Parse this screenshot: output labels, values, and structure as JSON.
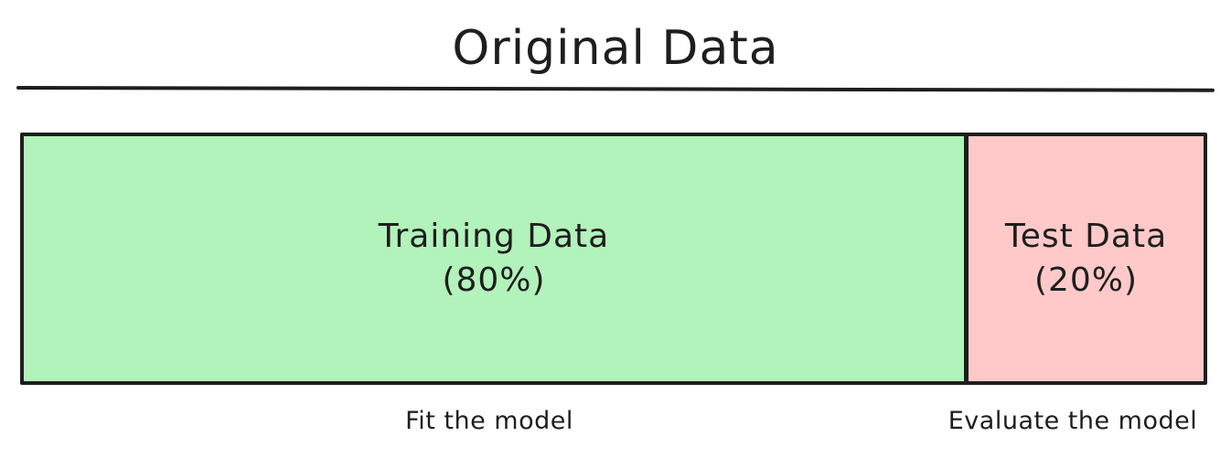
{
  "title": "Original Data",
  "split": [
    {
      "label": "Training Data",
      "percent_label": "(80%)",
      "fraction": 0.8,
      "color": "#b2f2bb",
      "caption": "Fit the model"
    },
    {
      "label": "Test Data",
      "percent_label": "(20%)",
      "fraction": 0.2,
      "color": "#ffc9c9",
      "caption": "Evaluate the model"
    }
  ],
  "stroke_color": "#1e1e1e"
}
